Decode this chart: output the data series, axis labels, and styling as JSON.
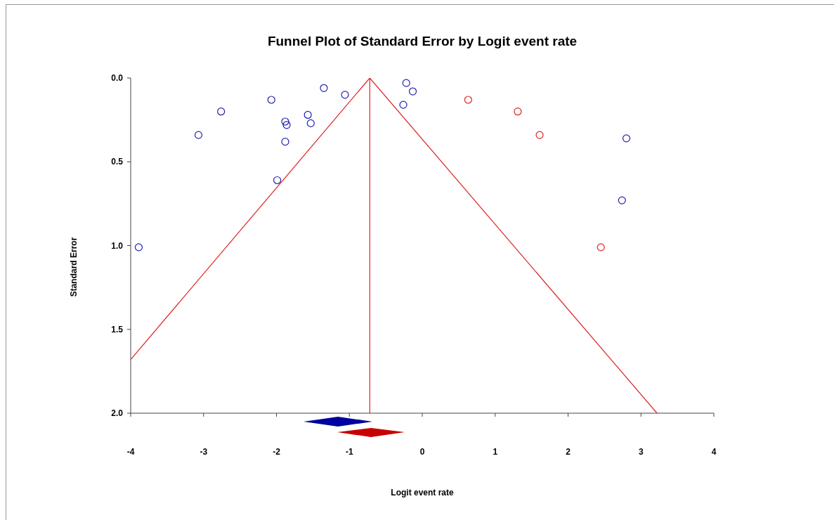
{
  "chart_data": {
    "type": "scatter",
    "title": "Funnel Plot of Standard Error by Logit event rate",
    "xlabel": "Logit event rate",
    "ylabel": "Standard Error",
    "xlim": [
      -4,
      4
    ],
    "xticks": [
      -4,
      -3,
      -2,
      -1,
      0,
      1,
      2,
      3,
      4
    ],
    "ylim": [
      2,
      0
    ],
    "yticks": [
      {
        "value": 0,
        "label": "0.0"
      },
      0.5,
      {
        "value": 1,
        "label": "1.0"
      },
      1.5,
      {
        "value": 2,
        "label": "2.0"
      }
    ],
    "marker": "circle",
    "series": [
      {
        "color": "#2020b0",
        "x": [
          -3.89,
          -3.07,
          -2.76,
          -2.07,
          -1.99,
          -1.88,
          -1.86,
          -1.88,
          -1.57,
          -1.53,
          -1.35,
          -1.06,
          -0.22,
          -0.13,
          -0.26,
          2.8,
          2.74
        ],
        "values": [
          1.01,
          0.34,
          0.2,
          0.13,
          0.61,
          0.26,
          0.28,
          0.38,
          0.22,
          0.27,
          0.06,
          0.1,
          0.03,
          0.08,
          0.16,
          0.36,
          0.73
        ]
      },
      {
        "color": "#e02020",
        "x": [
          0.63,
          1.31,
          1.61,
          2.45
        ],
        "values": [
          0.13,
          0.2,
          0.34,
          1.01
        ]
      },
      {
        "type": "line",
        "marker": "none",
        "color": "#e02020",
        "x": [
          -4,
          -0.72,
          3.22
        ],
        "values": [
          1.68,
          0,
          2
        ]
      },
      {
        "type": "line",
        "marker": "none",
        "color": "#e02020",
        "x": [
          -0.72,
          -0.72
        ],
        "values": [
          0,
          2
        ]
      }
    ]
  }
}
